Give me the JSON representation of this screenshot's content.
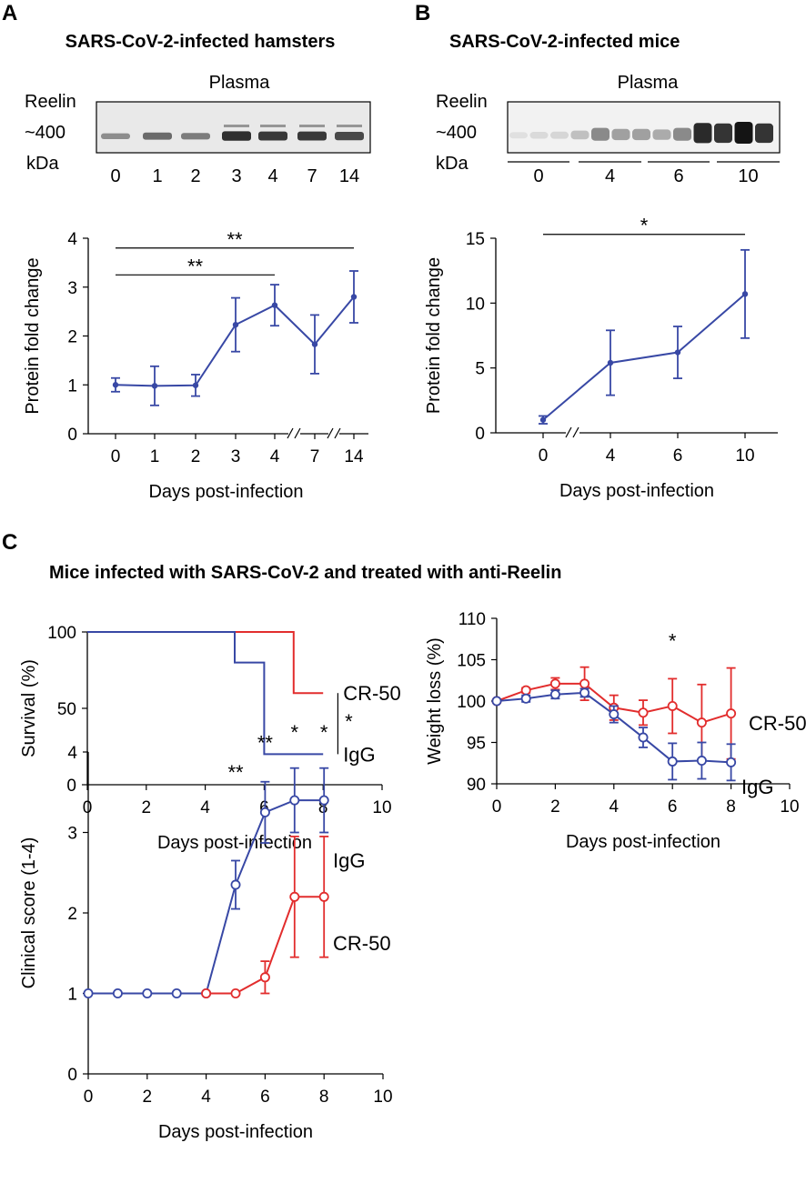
{
  "panels": {
    "A": {
      "letter": "A",
      "title": "SARS-CoV-2-infected hamsters",
      "blot": {
        "header": "Plasma",
        "reelin_label": "Reelin",
        "size_label": "~400",
        "unit_label": "kDa",
        "lanes": [
          "0",
          "1",
          "2",
          "3",
          "4",
          "7",
          "14"
        ],
        "band_intensity": [
          0.35,
          0.55,
          0.45,
          0.9,
          0.85,
          0.85,
          0.75
        ]
      }
    },
    "B": {
      "letter": "B",
      "title": "SARS-CoV-2-infected mice",
      "blot": {
        "header": "Plasma",
        "reelin_label": "Reelin",
        "size_label": "~400",
        "unit_label": "kDa",
        "groups": [
          "0",
          "4",
          "6",
          "10"
        ],
        "band_intensity": [
          0.05,
          0.08,
          0.1,
          0.2,
          0.45,
          0.35,
          0.35,
          0.3,
          0.45,
          0.9,
          0.85,
          1.0,
          0.85
        ]
      }
    },
    "C": {
      "letter": "C",
      "title": "Mice infected with SARS-CoV-2 and treated with anti-Reelin"
    }
  },
  "colors": {
    "blue": "#3848a5",
    "red": "#e22d2d",
    "black": "#000000"
  },
  "chart_data": [
    {
      "id": "A",
      "type": "line",
      "xlabel": "Days post-infection",
      "ylabel": "Protein fold change",
      "ylim": [
        0,
        4
      ],
      "yticks": [
        "0",
        "1",
        "2",
        "3",
        "4"
      ],
      "categories": [
        "0",
        "1",
        "2",
        "3",
        "4",
        "7",
        "14"
      ],
      "axis_breaks": [
        "4-7",
        "7-14"
      ],
      "series": [
        {
          "name": "Reelin",
          "color": "#3848a5",
          "values": [
            1.0,
            0.98,
            0.99,
            2.23,
            2.63,
            1.83,
            2.8
          ],
          "error": [
            0.14,
            0.4,
            0.22,
            0.55,
            0.42,
            0.6,
            0.53
          ]
        }
      ],
      "significance": [
        {
          "from": "0",
          "to": "14",
          "label": "**",
          "y": 3.8
        },
        {
          "from": "0",
          "to": "4",
          "label": "**",
          "y": 3.25
        }
      ]
    },
    {
      "id": "B",
      "type": "line",
      "xlabel": "Days post-infection",
      "ylabel": "Protein fold change",
      "ylim": [
        0,
        15
      ],
      "yticks": [
        "0",
        "5",
        "10",
        "15"
      ],
      "categories": [
        "0",
        "4",
        "6",
        "10"
      ],
      "axis_breaks": [
        "0-4"
      ],
      "series": [
        {
          "name": "Reelin",
          "color": "#3848a5",
          "values": [
            1.0,
            5.4,
            6.2,
            10.7
          ],
          "error": [
            0.3,
            2.5,
            2.0,
            3.4
          ]
        }
      ],
      "significance": [
        {
          "from": "0",
          "to": "10",
          "label": "*",
          "y": 15.3
        }
      ]
    },
    {
      "id": "C-survival",
      "type": "line",
      "xlabel": "Days post-infection",
      "ylabel": "Survival (%)",
      "xlim": [
        0,
        10
      ],
      "ylim": [
        0,
        100
      ],
      "xticks": [
        "0",
        "2",
        "4",
        "6",
        "8",
        "10"
      ],
      "yticks": [
        "0",
        "50",
        "100"
      ],
      "series": [
        {
          "name": "CR-50",
          "color": "#e22d2d",
          "steps": [
            [
              0,
              100
            ],
            [
              7,
              100
            ],
            [
              7,
              60
            ],
            [
              8,
              60
            ]
          ]
        },
        {
          "name": "IgG",
          "color": "#3848a5",
          "steps": [
            [
              0,
              100
            ],
            [
              5,
              100
            ],
            [
              5,
              80
            ],
            [
              6,
              80
            ],
            [
              6,
              20
            ],
            [
              8,
              20
            ]
          ]
        }
      ],
      "significance": [
        {
          "label": "*",
          "between": [
            "CR-50",
            "IgG"
          ]
        }
      ]
    },
    {
      "id": "C-weight",
      "type": "line",
      "xlabel": "Days post-infection",
      "ylabel": "Weight loss (%)",
      "xlim": [
        0,
        10
      ],
      "ylim": [
        90,
        110
      ],
      "xticks": [
        "0",
        "2",
        "4",
        "6",
        "8",
        "10"
      ],
      "yticks": [
        "90",
        "95",
        "100",
        "105",
        "110"
      ],
      "series": [
        {
          "name": "CR-50",
          "color": "#e22d2d",
          "x": [
            0,
            1,
            2,
            3,
            4,
            5,
            6,
            7,
            8
          ],
          "values": [
            100,
            101.3,
            102.1,
            102.1,
            99.2,
            98.6,
            99.4,
            97.4,
            98.5
          ],
          "error": [
            0.1,
            0.3,
            0.7,
            2.0,
            1.5,
            1.5,
            3.3,
            4.6,
            5.5
          ]
        },
        {
          "name": "IgG",
          "color": "#3848a5",
          "x": [
            0,
            1,
            2,
            3,
            4,
            5,
            6,
            7,
            8
          ],
          "values": [
            100,
            100.3,
            100.8,
            101.0,
            98.4,
            95.6,
            92.7,
            92.8,
            92.6
          ],
          "error": [
            0.1,
            0.4,
            0.5,
            0.5,
            1.0,
            1.2,
            2.2,
            2.2,
            2.2
          ]
        }
      ],
      "significance": [
        {
          "x": 6,
          "label": "*",
          "y": 107.3
        }
      ]
    },
    {
      "id": "C-clinical",
      "type": "line",
      "xlabel": "Days post-infection",
      "ylabel": "Clinical score (1-4)",
      "xlim": [
        0,
        10
      ],
      "ylim": [
        0,
        4
      ],
      "xticks": [
        "0",
        "2",
        "4",
        "6",
        "8",
        "10"
      ],
      "yticks": [
        "0",
        "1",
        "2",
        "3",
        "4"
      ],
      "series": [
        {
          "name": "IgG",
          "color": "#3848a5",
          "x": [
            0,
            1,
            2,
            3,
            4,
            5,
            6,
            7,
            8
          ],
          "values": [
            1,
            1,
            1,
            1,
            1,
            2.35,
            3.25,
            3.4,
            3.4
          ],
          "error": [
            0,
            0,
            0,
            0,
            0,
            0.3,
            0.38,
            0.4,
            0.4
          ]
        },
        {
          "name": "CR-50",
          "color": "#e22d2d",
          "x": [
            4,
            5,
            6,
            7,
            8
          ],
          "values": [
            1,
            1,
            1.2,
            2.2,
            2.2
          ],
          "error": [
            0,
            0,
            0.2,
            0.75,
            0.75
          ]
        }
      ],
      "significance": [
        {
          "x": 5,
          "label": "**",
          "y": 3.75
        },
        {
          "x": 6,
          "label": "**",
          "y": 4.12
        },
        {
          "x": 7,
          "label": "*",
          "y": 4.25
        },
        {
          "x": 8,
          "label": "*",
          "y": 4.25
        }
      ]
    }
  ]
}
